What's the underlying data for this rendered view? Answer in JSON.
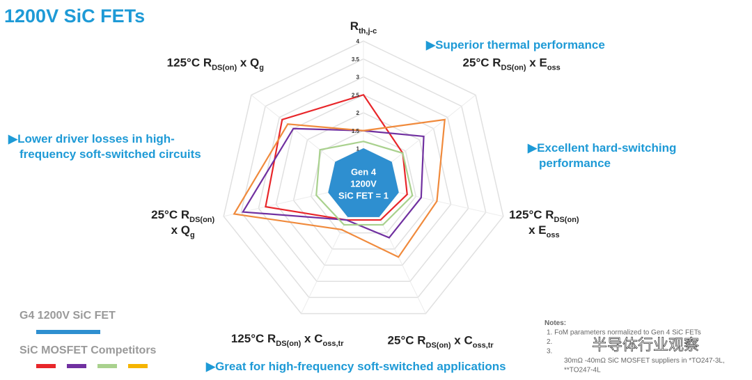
{
  "chart_data": {
    "type": "radar",
    "title": "1200V SiC FETs",
    "categories": [
      [
        [
          "R",
          {
            "sub": "th,j-c"
          }
        ]
      ],
      [
        [
          "25°C R",
          {
            "sub": "DS(on)"
          },
          " x E",
          {
            "sub": "oss"
          }
        ]
      ],
      [
        [
          "125°C R",
          {
            "sub": "DS(on)"
          }
        ],
        [
          "x E",
          {
            "sub": "oss"
          }
        ]
      ],
      [
        [
          "25°C R",
          {
            "sub": "DS(on)"
          },
          " x C",
          {
            "sub": "oss,tr"
          }
        ]
      ],
      [
        [
          "125°C R",
          {
            "sub": "DS(on)"
          },
          " x C",
          {
            "sub": "oss,tr"
          }
        ]
      ],
      [
        [
          "25°C R",
          {
            "sub": "DS(on)"
          }
        ],
        [
          "x Q",
          {
            "sub": "g"
          }
        ]
      ],
      [
        [
          "125°C R",
          {
            "sub": "DS(on)"
          },
          " x Q",
          {
            "sub": "g"
          }
        ]
      ]
    ],
    "ylim": [
      0,
      4
    ],
    "yticks": [
      1,
      1.5,
      2,
      2.5,
      3,
      3.5,
      4
    ],
    "grid": true,
    "series": [
      {
        "name": "G4 1200V SiC FET",
        "color": "#2e8fd0",
        "filled": true,
        "values": [
          1,
          1,
          1,
          1,
          1,
          1,
          1
        ]
      },
      {
        "color": "#e8262a",
        "values": [
          2.5,
          1.4,
          1.25,
          1.1,
          1.1,
          2.8,
          2.9
        ]
      },
      {
        "color": "#7030a0",
        "values": [
          1.5,
          2.15,
          1.65,
          1.65,
          1.1,
          3.45,
          2.5
        ]
      },
      {
        "color": "#a9d18e",
        "values": [
          1.2,
          1.4,
          1.4,
          1.25,
          1.25,
          1.35,
          1.55
        ]
      },
      {
        "color": "#f08a3c",
        "values": [
          1.5,
          2.9,
          2.1,
          2.25,
          1.4,
          3.7,
          2.7
        ]
      }
    ],
    "center_label": [
      "Gen 4",
      "1200V",
      "SiC FET = 1"
    ],
    "legend_group": "SiC MOSFET Competitors",
    "legend_swatches": [
      "#e8262a",
      "#7030a0",
      "#a9d18e",
      "#f5b400"
    ],
    "annotations": [
      [
        "▶Superior thermal performance"
      ],
      [
        "▶Excellent hard-switching",
        "performance"
      ],
      [
        "▶Great for high-frequency soft-switched applications"
      ],
      [
        "▶Lower driver losses in high-",
        "frequency soft-switched circuits"
      ]
    ],
    "notes": [
      "Notes:",
      "1.    FoM parameters normalized to Gen 4 SiC FETs",
      "2.",
      "3.",
      "30mΩ -40mΩ SiC MOSFET suppliers in *TO247-3L,",
      "**TO247-4L"
    ],
    "watermark": "半导体行业观察"
  }
}
